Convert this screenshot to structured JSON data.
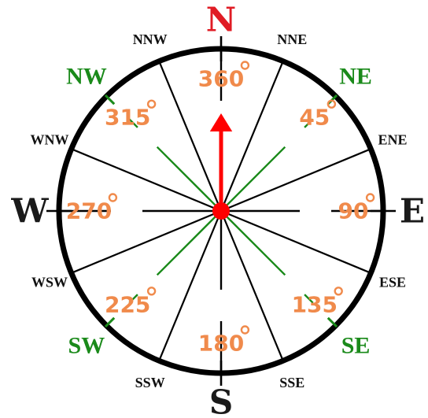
{
  "colors": {
    "ring": "#000000",
    "minor_line": "#000000",
    "intercardinal_line": "#1a8a1a",
    "north": "#e01b24",
    "cardinal": "#1a1a1a",
    "intercardinal": "#1a8a1a",
    "minor": "#111111",
    "degree": "#f08a4b",
    "arrow": "#ff0000"
  },
  "cardinals": [
    {
      "name": "north-label",
      "text": "N",
      "angle": 0
    },
    {
      "name": "east-label",
      "text": "E",
      "angle": 90
    },
    {
      "name": "south-label",
      "text": "S",
      "angle": 180
    },
    {
      "name": "west-label",
      "text": "W",
      "angle": 270
    }
  ],
  "intercardinals": [
    {
      "name": "northeast-label",
      "text": "NE",
      "angle": 45
    },
    {
      "name": "southeast-label",
      "text": "SE",
      "angle": 135
    },
    {
      "name": "southwest-label",
      "text": "SW",
      "angle": 225
    },
    {
      "name": "northwest-label",
      "text": "NW",
      "angle": 315
    }
  ],
  "minor_directions": [
    {
      "name": "nne-label",
      "text": "NNE",
      "angle": 22.5
    },
    {
      "name": "ene-label",
      "text": "ENE",
      "angle": 67.5
    },
    {
      "name": "ese-label",
      "text": "ESE",
      "angle": 112.5
    },
    {
      "name": "sse-label",
      "text": "SSE",
      "angle": 157.5
    },
    {
      "name": "ssw-label",
      "text": "SSW",
      "angle": 202.5
    },
    {
      "name": "wsw-label",
      "text": "WSW",
      "angle": 247.5
    },
    {
      "name": "wnw-label",
      "text": "WNW",
      "angle": 292.5
    },
    {
      "name": "nnw-label",
      "text": "NNW",
      "angle": 337.5
    }
  ],
  "degrees": [
    {
      "name": "degree-360",
      "value": "360",
      "angle": 0
    },
    {
      "name": "degree-45",
      "value": "45",
      "angle": 45
    },
    {
      "name": "degree-90",
      "value": "90",
      "angle": 90
    },
    {
      "name": "degree-135",
      "value": "135",
      "angle": 135
    },
    {
      "name": "degree-180",
      "value": "180",
      "angle": 180
    },
    {
      "name": "degree-225",
      "value": "225",
      "angle": 225
    },
    {
      "name": "degree-270",
      "value": "270",
      "angle": 270
    },
    {
      "name": "degree-315",
      "value": "315",
      "angle": 315
    }
  ],
  "arrow_heading": 0
}
